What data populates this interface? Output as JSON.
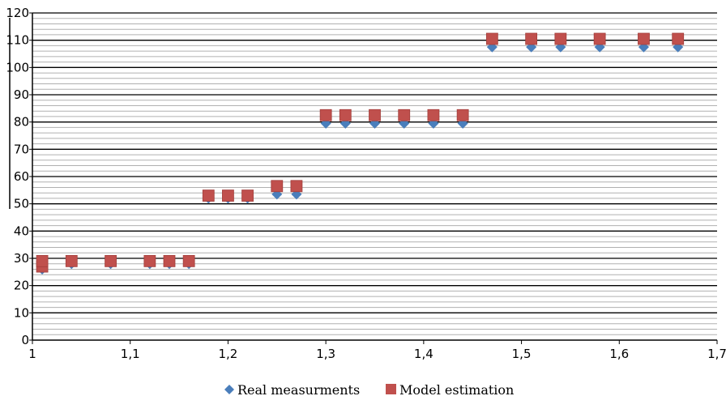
{
  "chart_data": {
    "type": "scatter",
    "title": "",
    "xlabel": "",
    "ylabel": "",
    "xlim": [
      1,
      1.7
    ],
    "ylim": [
      0,
      120
    ],
    "x_ticks": [
      "1",
      "1,1",
      "1,2",
      "1,3",
      "1,4",
      "1,5",
      "1,6",
      "1,7"
    ],
    "y_ticks": [
      "0",
      "10",
      "20",
      "30",
      "40",
      "50",
      "60",
      "70",
      "80",
      "90",
      "100",
      "110",
      "120"
    ],
    "grid": {
      "major_y": true,
      "minor_y": true
    },
    "legend_position": "bottom",
    "series": [
      {
        "name": "Real measurments",
        "marker": "diamond",
        "color": "#4a7ebb",
        "points": [
          {
            "x": 1.01,
            "y": 26
          },
          {
            "x": 1.04,
            "y": 28
          },
          {
            "x": 1.08,
            "y": 28
          },
          {
            "x": 1.12,
            "y": 28
          },
          {
            "x": 1.14,
            "y": 28
          },
          {
            "x": 1.16,
            "y": 28
          },
          {
            "x": 1.18,
            "y": 52
          },
          {
            "x": 1.2,
            "y": 52
          },
          {
            "x": 1.22,
            "y": 52
          },
          {
            "x": 1.25,
            "y": 53.5
          },
          {
            "x": 1.27,
            "y": 53.5
          },
          {
            "x": 1.3,
            "y": 79.5
          },
          {
            "x": 1.32,
            "y": 79.5
          },
          {
            "x": 1.35,
            "y": 79.5
          },
          {
            "x": 1.38,
            "y": 79.5
          },
          {
            "x": 1.41,
            "y": 79.5
          },
          {
            "x": 1.44,
            "y": 79.5
          },
          {
            "x": 1.47,
            "y": 107.5
          },
          {
            "x": 1.51,
            "y": 107.5
          },
          {
            "x": 1.54,
            "y": 107.5
          },
          {
            "x": 1.58,
            "y": 107.5
          },
          {
            "x": 1.625,
            "y": 107.5
          },
          {
            "x": 1.66,
            "y": 107.5
          }
        ]
      },
      {
        "name": "Model estimation",
        "marker": "square",
        "color": "#c0504d",
        "points": [
          {
            "x": 1.01,
            "y": 27
          },
          {
            "x": 1.01,
            "y": 29
          },
          {
            "x": 1.04,
            "y": 29
          },
          {
            "x": 1.08,
            "y": 29
          },
          {
            "x": 1.12,
            "y": 29
          },
          {
            "x": 1.14,
            "y": 29
          },
          {
            "x": 1.16,
            "y": 29
          },
          {
            "x": 1.18,
            "y": 53
          },
          {
            "x": 1.2,
            "y": 53
          },
          {
            "x": 1.22,
            "y": 53
          },
          {
            "x": 1.25,
            "y": 56.5
          },
          {
            "x": 1.27,
            "y": 56.5
          },
          {
            "x": 1.3,
            "y": 82.5
          },
          {
            "x": 1.32,
            "y": 82.5
          },
          {
            "x": 1.35,
            "y": 82.5
          },
          {
            "x": 1.38,
            "y": 82.5
          },
          {
            "x": 1.41,
            "y": 82.5
          },
          {
            "x": 1.44,
            "y": 82.5
          },
          {
            "x": 1.47,
            "y": 110.5
          },
          {
            "x": 1.51,
            "y": 110.5
          },
          {
            "x": 1.54,
            "y": 110.5
          },
          {
            "x": 1.58,
            "y": 110.5
          },
          {
            "x": 1.625,
            "y": 110.5
          },
          {
            "x": 1.66,
            "y": 110.5
          }
        ]
      }
    ]
  }
}
